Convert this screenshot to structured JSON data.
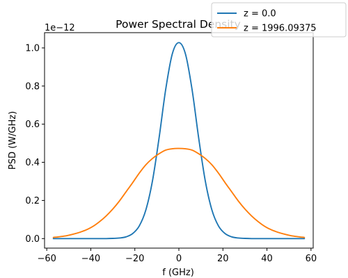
{
  "chart_data": {
    "type": "line",
    "title": "Power Spectral Density",
    "xlabel": "f (GHz)",
    "ylabel": "PSD (W/GHz)",
    "y_offset_label": "1e−12",
    "xlim": [
      -61,
      61
    ],
    "ylim": [
      -0.05,
      1.08
    ],
    "x_ticks": [
      -60,
      -40,
      -20,
      0,
      20,
      40,
      60
    ],
    "x_tick_labels": [
      "−60",
      "−40",
      "−20",
      "0",
      "20",
      "40",
      "60"
    ],
    "y_ticks": [
      0.0,
      0.2,
      0.4,
      0.6,
      0.8,
      1.0
    ],
    "y_tick_labels": [
      "0.0",
      "0.2",
      "0.4",
      "0.6",
      "0.8",
      "1.0"
    ],
    "grid": false,
    "legend_position": "top-right",
    "x": [
      -57,
      -54,
      -51,
      -48,
      -45,
      -42,
      -39,
      -36,
      -33,
      -30,
      -27,
      -24,
      -21,
      -18,
      -15,
      -12,
      -9,
      -6,
      -3,
      0,
      3,
      6,
      9,
      12,
      15,
      18,
      21,
      24,
      27,
      30,
      33,
      36,
      39,
      42,
      45,
      48,
      51,
      54,
      57
    ],
    "series": [
      {
        "name": "z = 0.0",
        "color": "#1f77b4",
        "values": [
          0.0,
          0.0,
          0.0,
          0.0,
          0.0,
          0.0,
          0.0,
          0.0,
          0.0,
          0.001,
          0.003,
          0.009,
          0.026,
          0.066,
          0.15,
          0.302,
          0.527,
          0.781,
          0.968,
          1.028,
          0.968,
          0.781,
          0.527,
          0.302,
          0.15,
          0.066,
          0.026,
          0.009,
          0.003,
          0.001,
          0.0,
          0.0,
          0.0,
          0.0,
          0.0,
          0.0,
          0.0,
          0.0,
          0.0
        ]
      },
      {
        "name": "z = 1996.09375",
        "color": "#ff7f0e",
        "values": [
          0.006,
          0.01,
          0.015,
          0.023,
          0.033,
          0.046,
          0.064,
          0.089,
          0.119,
          0.155,
          0.197,
          0.245,
          0.293,
          0.343,
          0.387,
          0.42,
          0.445,
          0.464,
          0.471,
          0.473,
          0.471,
          0.464,
          0.445,
          0.42,
          0.387,
          0.343,
          0.293,
          0.245,
          0.197,
          0.155,
          0.119,
          0.089,
          0.064,
          0.046,
          0.033,
          0.023,
          0.015,
          0.01,
          0.006
        ]
      }
    ]
  }
}
